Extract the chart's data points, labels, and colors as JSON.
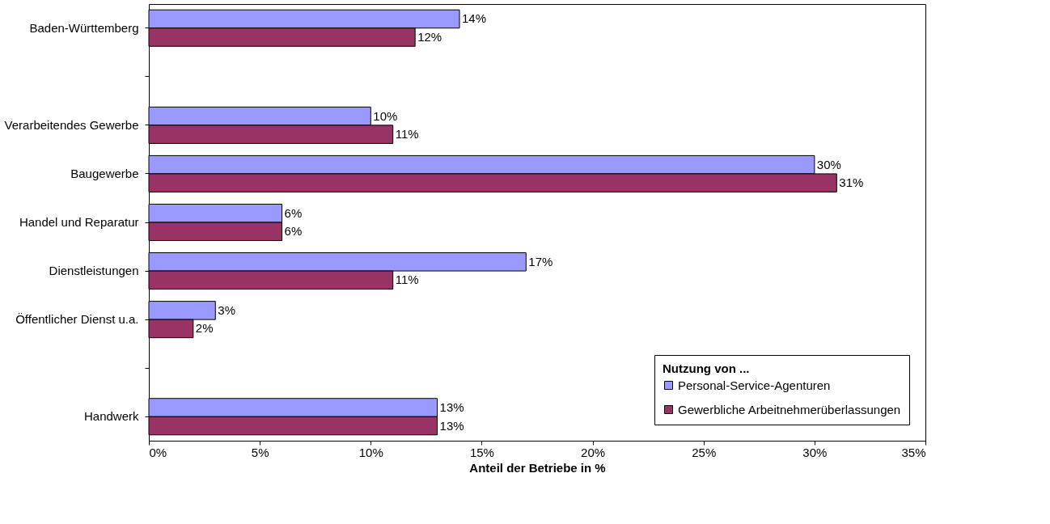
{
  "chart_data": {
    "type": "bar",
    "orientation": "horizontal",
    "xlabel": "Anteil der Betriebe in %",
    "legend_title": "Nutzung von ...",
    "legend": "bottom right",
    "categories": [
      "Baden-Württemberg",
      null,
      "Verarbeitendes Gewerbe",
      "Baugewerbe",
      "Handel und Reparatur",
      "Dienstleistungen",
      "Öffentlicher Dienst u.a.",
      null,
      "Handwerk"
    ],
    "series": [
      {
        "name": "Personal-Service-Agenturen",
        "color": "#9999ff",
        "values": [
          14,
          null,
          10,
          30,
          6,
          17,
          3,
          null,
          13
        ],
        "value_labels": [
          "14%",
          null,
          "10%",
          "30%",
          "6%",
          "17%",
          "3%",
          null,
          "13%"
        ]
      },
      {
        "name": "Gewerbliche Arbeitnehmerüberlassungen",
        "color": "#993366",
        "values": [
          12,
          null,
          11,
          31,
          6,
          11,
          2,
          null,
          13
        ],
        "value_labels": [
          "12%",
          null,
          "11%",
          "31%",
          "6%",
          "11%",
          "2%",
          null,
          "13%"
        ]
      }
    ],
    "xlim": [
      0,
      35
    ],
    "xticks": [
      {
        "value": 0,
        "label": "0%"
      },
      {
        "value": 5,
        "label": "5%"
      },
      {
        "value": 10,
        "label": "10%"
      },
      {
        "value": 15,
        "label": "15%"
      },
      {
        "value": 20,
        "label": "20%"
      },
      {
        "value": 25,
        "label": "25%"
      },
      {
        "value": 30,
        "label": "30%"
      },
      {
        "value": 35,
        "label": "35%"
      }
    ],
    "grid": false
  }
}
